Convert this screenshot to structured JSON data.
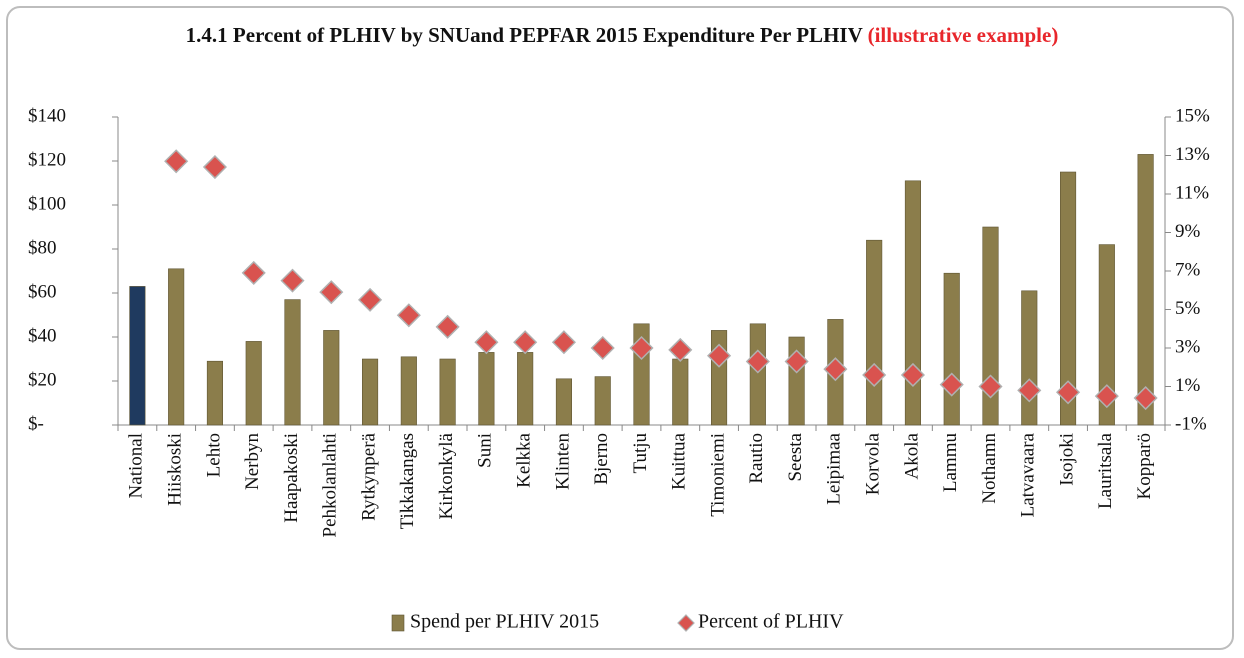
{
  "chart_data": {
    "type": "bar_scatter",
    "title": "1.4.1  Percent of PLHIV by SNUand PEPFAR 2015  Expenditure Per PLHIV",
    "title_note": "(illustrative example)",
    "categories": [
      "National",
      "Hiiskoski",
      "Lehto",
      "Nerbyn",
      "Haapakoski",
      "Pehkolanlahti",
      "Rytkynperä",
      "Tikkakangas",
      "Kirkonkylä",
      "Suni",
      "Kelkka",
      "Klinten",
      "Bjerno",
      "Tutju",
      "Kuittua",
      "Timoniemi",
      "Rautio",
      "Seesta",
      "Leipimaa",
      "Korvola",
      "Akola",
      "Lammu",
      "Nothamn",
      "Latvavaara",
      "Isojoki",
      "Lauritsala",
      "Kopparö"
    ],
    "series": [
      {
        "name": "Spend per PLHIV 2015",
        "type": "bar",
        "color": "#8b7d4b",
        "colors": [
          "#1f3a5f",
          "#8b7d4b",
          "#8b7d4b",
          "#8b7d4b",
          "#8b7d4b",
          "#8b7d4b",
          "#8b7d4b",
          "#8b7d4b",
          "#8b7d4b",
          "#8b7d4b",
          "#8b7d4b",
          "#8b7d4b",
          "#8b7d4b",
          "#8b7d4b",
          "#8b7d4b",
          "#8b7d4b",
          "#8b7d4b",
          "#8b7d4b",
          "#8b7d4b",
          "#8b7d4b",
          "#8b7d4b",
          "#8b7d4b",
          "#8b7d4b",
          "#8b7d4b",
          "#8b7d4b",
          "#8b7d4b",
          "#8b7d4b"
        ],
        "values": [
          63,
          71,
          29,
          38,
          57,
          43,
          30,
          31,
          30,
          33,
          33,
          21,
          22,
          46,
          30,
          43,
          46,
          40,
          48,
          84,
          111,
          69,
          90,
          61,
          115,
          82,
          123
        ]
      },
      {
        "name": "Percent of PLHIV",
        "type": "scatter",
        "axis": "y2",
        "color": "#d9534f",
        "values": [
          null,
          12.7,
          12.4,
          6.9,
          6.5,
          5.9,
          5.5,
          4.7,
          4.1,
          3.3,
          3.3,
          3.3,
          3.0,
          3.0,
          2.9,
          2.6,
          2.3,
          2.3,
          1.9,
          1.6,
          1.6,
          1.1,
          1.0,
          0.8,
          0.7,
          0.5,
          0.4
        ]
      }
    ],
    "ylim": [
      0,
      140
    ],
    "yticks": [
      {
        "value": 0,
        "label": "$-"
      },
      {
        "value": 20,
        "label": "$20"
      },
      {
        "value": 40,
        "label": "$40"
      },
      {
        "value": 60,
        "label": "$60"
      },
      {
        "value": 80,
        "label": "$80"
      },
      {
        "value": 100,
        "label": "$100"
      },
      {
        "value": 120,
        "label": "$120"
      },
      {
        "value": 140,
        "label": "$140"
      }
    ],
    "y2lim": [
      -1,
      15
    ],
    "y2ticks": [
      {
        "value": -1,
        "label": "-1%"
      },
      {
        "value": 1,
        "label": "1%"
      },
      {
        "value": 3,
        "label": "3%"
      },
      {
        "value": 5,
        "label": "5%"
      },
      {
        "value": 7,
        "label": "7%"
      },
      {
        "value": 9,
        "label": "9%"
      },
      {
        "value": 11,
        "label": "11%"
      },
      {
        "value": 13,
        "label": "13%"
      },
      {
        "value": 15,
        "label": "15%"
      }
    ],
    "legend": "bottom",
    "grid": false
  }
}
